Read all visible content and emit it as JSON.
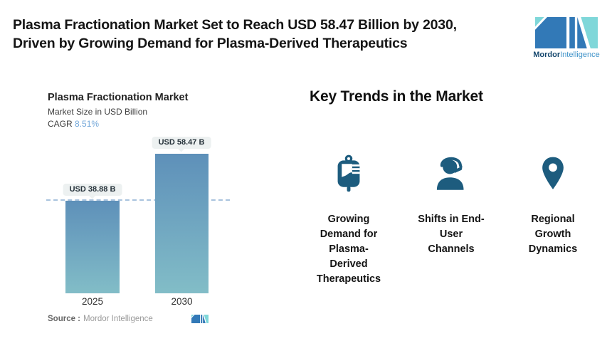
{
  "header": {
    "title": "Plasma Fractionation Market Set to Reach USD 58.47 Billion by 2030,\nDriven by Growing Demand for Plasma-Derived Therapeutics",
    "logo": {
      "brand_bold": "Mordor",
      "brand_light": "Intelligence"
    }
  },
  "chart": {
    "title": "Plasma Fractionation Market",
    "subtitle": "Market Size in USD Billion",
    "cagr_label": "CAGR",
    "cagr_value": "8.51%",
    "source_label": "Source :",
    "source_value": "Mordor Intelligence"
  },
  "chart_data": {
    "type": "bar",
    "title": "Plasma Fractionation Market",
    "ylabel": "Market Size in USD Billion",
    "cagr": "8.51%",
    "categories": [
      "2025",
      "2030"
    ],
    "values": [
      38.88,
      58.47
    ],
    "value_labels": [
      "USD 38.88 B",
      "USD 58.47 B"
    ],
    "ylim": [
      0,
      65
    ],
    "reference_line": 38.88,
    "grid": false,
    "legend": "none",
    "bar_gradient_top": "#5e90b9",
    "bar_gradient_bottom": "#82bdc7",
    "reference_line_color": "#a9c3de"
  },
  "trends": {
    "heading": "Key Trends in the Market",
    "items": [
      {
        "icon": "blood-bag-icon",
        "label": "Growing\nDemand for\nPlasma-\nDerived\nTherapeutics"
      },
      {
        "icon": "headset-agent-icon",
        "label": "Shifts in End-\nUser\nChannels"
      },
      {
        "icon": "location-pin-icon",
        "label": "Regional\nGrowth\nDynamics"
      }
    ]
  },
  "colors": {
    "icon": "#1d5c7e",
    "logo_blue": "#3279b7",
    "logo_teal": "#7fd7d9",
    "accent_cagr": "#74a8da",
    "callout_bg": "#edf1f1"
  }
}
